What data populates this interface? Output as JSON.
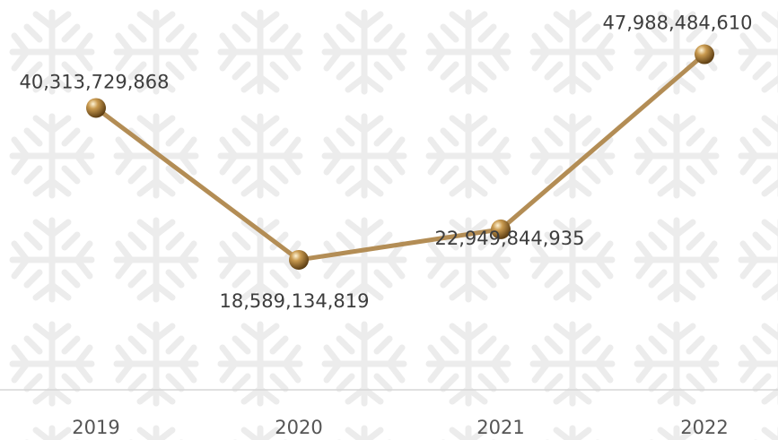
{
  "chart_data": {
    "type": "line",
    "categories": [
      "2019",
      "2020",
      "2021",
      "2022"
    ],
    "values": [
      40313729868,
      18589134819,
      22949844935,
      47988484610
    ],
    "value_labels": [
      "40,313,729,868",
      "18,589,134,819",
      "22,949,844,935",
      "47,988,484,610"
    ],
    "color": "#b38d55",
    "ylim": [
      0,
      55750000000
    ]
  }
}
